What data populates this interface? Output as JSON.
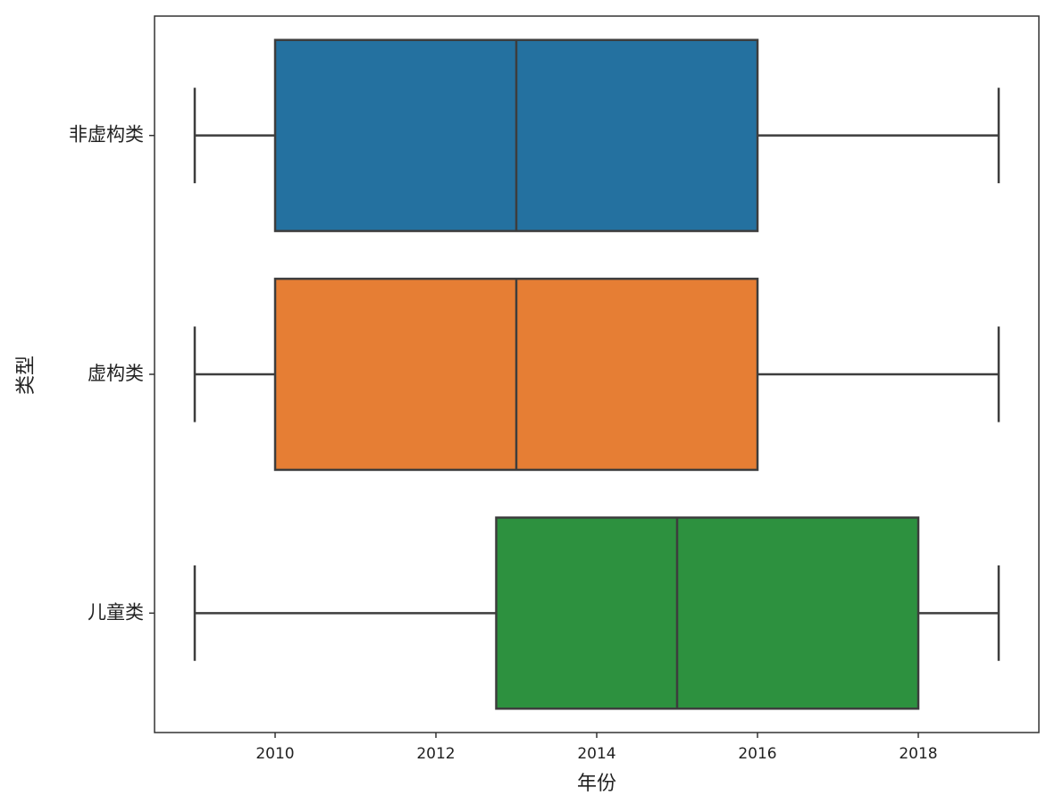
{
  "chart_data": {
    "type": "boxplot",
    "orientation": "horizontal",
    "xlabel": "年份",
    "ylabel": "类型",
    "categories": [
      "非虚构类",
      "虚构类",
      "儿童类"
    ],
    "colors": [
      "#2471a0",
      "#e67e34",
      "#2d913f"
    ],
    "boxes": [
      {
        "min": 2009,
        "q1": 2010,
        "median": 2013,
        "q3": 2016,
        "max": 2019
      },
      {
        "min": 2009,
        "q1": 2010,
        "median": 2013,
        "q3": 2016,
        "max": 2019
      },
      {
        "min": 2009,
        "q1": 2012.75,
        "median": 2015,
        "q3": 2018,
        "max": 2019
      }
    ],
    "xlim": [
      2008.5,
      2019.5
    ],
    "xticks": [
      2010,
      2012,
      2014,
      2016,
      2018
    ]
  }
}
